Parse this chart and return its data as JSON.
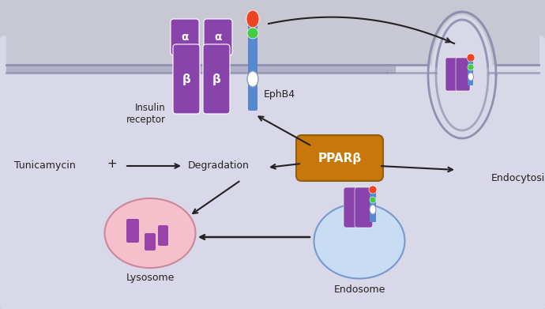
{
  "bg_outer": "#c8c8d4",
  "cell_fill": "#d8d8e8",
  "border_color": "#9090aa",
  "text_color": "#222222",
  "purple": "#8844aa",
  "orange_ppar": "#c8780a",
  "pink_lysosome": "#f5c0cc",
  "blue_endosome": "#c8dcf4",
  "arrow_color": "#222222",
  "labels": {
    "insulin_receptor": "Insulin\nreceptor",
    "ephb4": "EphB4",
    "tunicamycin": "Tunicamycin",
    "degradation": "Degradation",
    "ppar": "PPARβ",
    "lysosome": "Lysosome",
    "endosome": "Endosome",
    "endocytosis": "Endocytosis"
  }
}
